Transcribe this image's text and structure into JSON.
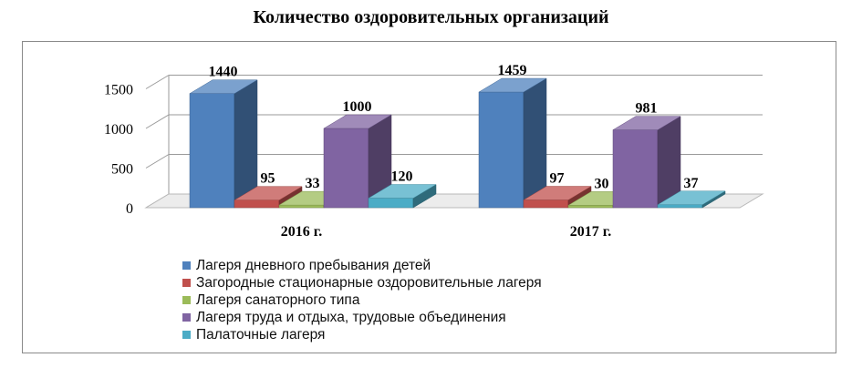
{
  "chart_data": {
    "type": "bar",
    "title": "Количество оздоровительных организаций",
    "categories": [
      "2016 г.",
      "2017 г."
    ],
    "yticks": [
      "0",
      "500",
      "1000",
      "1500"
    ],
    "ylim": [
      0,
      1500
    ],
    "grid": true,
    "legend_placement": "bottom",
    "series": [
      {
        "name": "Лагеря дневного пребывания детей",
        "values": [
          1440,
          1459
        ],
        "labels": [
          "1440",
          "1459"
        ],
        "color": "#4f81bd"
      },
      {
        "name": "Загородные стационарные оздоровительные лагеря",
        "values": [
          95,
          97
        ],
        "labels": [
          "95",
          "97"
        ],
        "color": "#c0504d"
      },
      {
        "name": "Лагеря санаторного типа",
        "values": [
          33,
          30
        ],
        "labels": [
          "33",
          "30"
        ],
        "color": "#9bbb59"
      },
      {
        "name": "Лагеря труда и отдыха, трудовые объединения",
        "values": [
          1000,
          981
        ],
        "labels": [
          "1000",
          "981"
        ],
        "color": "#8064a2"
      },
      {
        "name": "Палаточные лагеря",
        "values": [
          120,
          37
        ],
        "labels": [
          "120",
          "37"
        ],
        "color": "#4bacc6"
      }
    ]
  }
}
